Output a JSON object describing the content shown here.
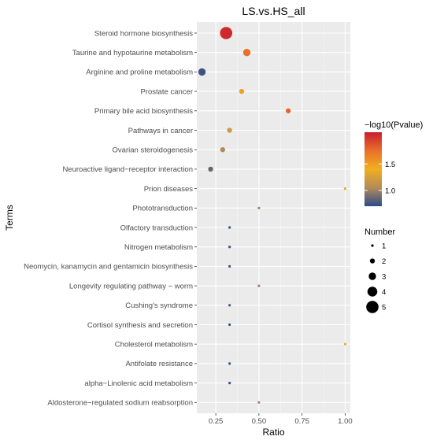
{
  "chart_data": {
    "type": "scatter",
    "title": "LS.vs.HS_all",
    "xlabel": "Ratio",
    "ylabel": "Terms",
    "xlim": [
      0.14,
      1.03
    ],
    "x_ticks": [
      0.25,
      0.5,
      0.75,
      1.0
    ],
    "x_tick_labels": [
      "0.25",
      "0.50",
      "0.75",
      "1.00"
    ],
    "grid": true,
    "color_legend": {
      "title": "−log10(Pvalue)",
      "ticks": [
        1.0,
        1.5
      ],
      "tick_labels": [
        "1.0",
        "1.5"
      ],
      "range": [
        0.7,
        2.1
      ],
      "colors": [
        "#2b4a8a",
        "#b28a5a",
        "#f0b020",
        "#e8702a",
        "#c81e2e"
      ]
    },
    "size_legend": {
      "title": "Number",
      "values": [
        1,
        2,
        3,
        4,
        5
      ],
      "labels": [
        "1",
        "2",
        "3",
        "4",
        "5"
      ]
    },
    "points": [
      {
        "term": "Steroid hormone biosynthesis",
        "ratio": 0.31,
        "neglog10p": 2.05,
        "number": 5
      },
      {
        "term": "Taurine and hypotaurine metabolism",
        "ratio": 0.43,
        "neglog10p": 1.75,
        "number": 3
      },
      {
        "term": "Arginine and proline metabolism",
        "ratio": 0.17,
        "neglog10p": 0.75,
        "number": 3
      },
      {
        "term": "Prostate cancer",
        "ratio": 0.4,
        "neglog10p": 1.5,
        "number": 2
      },
      {
        "term": "Primary bile acid biosynthesis",
        "ratio": 0.67,
        "neglog10p": 1.8,
        "number": 2
      },
      {
        "term": "Pathways in cancer",
        "ratio": 0.33,
        "neglog10p": 1.2,
        "number": 2
      },
      {
        "term": "Ovarian steroidogenesis",
        "ratio": 0.29,
        "neglog10p": 1.05,
        "number": 2
      },
      {
        "term": "Neuroactive ligand−receptor interaction",
        "ratio": 0.22,
        "neglog10p": 0.85,
        "number": 2
      },
      {
        "term": "Prion diseases",
        "ratio": 1.0,
        "neglog10p": 1.35,
        "number": 1
      },
      {
        "term": "Phototransduction",
        "ratio": 0.5,
        "neglog10p": 1.0,
        "number": 1
      },
      {
        "term": "Olfactory transduction",
        "ratio": 0.33,
        "neglog10p": 0.75,
        "number": 1
      },
      {
        "term": "Nitrogen metabolism",
        "ratio": 0.33,
        "neglog10p": 0.75,
        "number": 1
      },
      {
        "term": "Neomycin, kanamycin and gentamicin biosynthesis",
        "ratio": 0.33,
        "neglog10p": 0.75,
        "number": 1
      },
      {
        "term": "Longevity regulating pathway − worm",
        "ratio": 0.5,
        "neglog10p": 1.0,
        "number": 1
      },
      {
        "term": "Cushing's syndrome",
        "ratio": 0.33,
        "neglog10p": 0.75,
        "number": 1
      },
      {
        "term": "Cortisol synthesis and secretion",
        "ratio": 0.33,
        "neglog10p": 0.75,
        "number": 1
      },
      {
        "term": "Cholesterol metabolism",
        "ratio": 1.0,
        "neglog10p": 1.35,
        "number": 1
      },
      {
        "term": "Antifolate resistance",
        "ratio": 0.33,
        "neglog10p": 0.75,
        "number": 1
      },
      {
        "term": "alpha−Linolenic acid metabolism",
        "ratio": 0.33,
        "neglog10p": 0.75,
        "number": 1
      },
      {
        "term": "Aldosterone−regulated sodium reabsorption",
        "ratio": 0.5,
        "neglog10p": 1.0,
        "number": 1
      }
    ]
  }
}
